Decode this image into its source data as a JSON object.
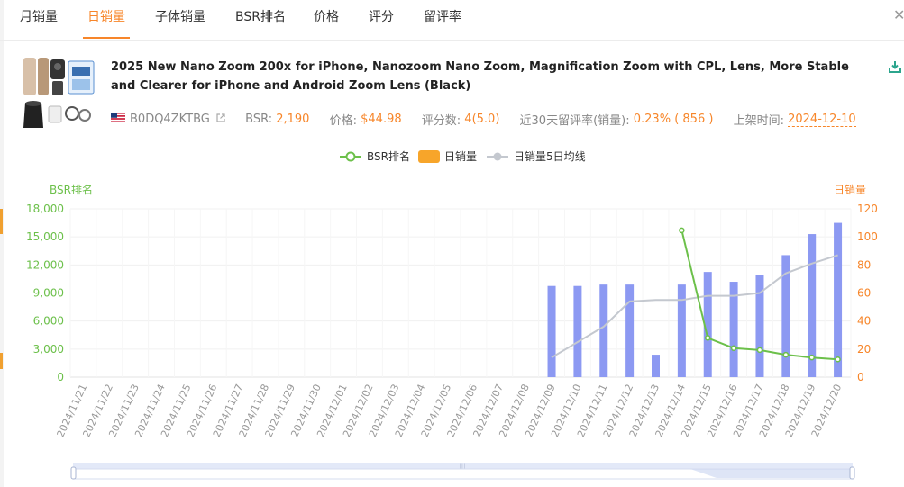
{
  "tabs": [
    {
      "label": "月销量",
      "active": false
    },
    {
      "label": "日销量",
      "active": true
    },
    {
      "label": "子体销量",
      "active": false
    },
    {
      "label": "BSR排名",
      "active": false
    },
    {
      "label": "价格",
      "active": false
    },
    {
      "label": "评分",
      "active": false
    },
    {
      "label": "留评率",
      "active": false
    }
  ],
  "close_icon": "close-icon",
  "product": {
    "title": "2025 New Nano Zoom 200x for iPhone, Nanozoom Nano Zoom, Magnification Zoom with CPL, Lens, More Stable and Clearer for iPhone and Android Zoom Lens (Black)",
    "asin": "B0DQ4ZKTBG",
    "bsr_label": "BSR:",
    "bsr_value": "2,190",
    "price_label": "价格:",
    "price_value": "$44.98",
    "rating_label": "评分数:",
    "rating_value": "4(5.0)",
    "review_rate_label": "近30天留评率(销量):",
    "review_rate_value": "0.23%",
    "review_rate_count": "( 856 )",
    "listed_label": "上架时间:",
    "listed_value": "2024-12-10"
  },
  "colors": {
    "accent": "#f7862a",
    "bsr_line": "#6cc04a",
    "bars": "#8c99f2",
    "ma_line": "#c4c8cf"
  },
  "chart_data": {
    "type": "bar",
    "legend": [
      "BSR排名",
      "日销量",
      "日销量5日均线"
    ],
    "legend_position": "top-center",
    "ylabel_left": "BSR排名",
    "ylabel_right": "日销量",
    "yticks_left": [
      "0",
      "3,000",
      "6,000",
      "9,000",
      "12,000",
      "15,000",
      "18,000"
    ],
    "yticks_right": [
      "0",
      "20",
      "40",
      "60",
      "80",
      "100",
      "120"
    ],
    "ylim_left": [
      0,
      18000
    ],
    "ylim_right": [
      0,
      120
    ],
    "grid": true,
    "categories": [
      "2024/11/21",
      "2024/11/22",
      "2024/11/23",
      "2024/11/24",
      "2024/11/25",
      "2024/11/26",
      "2024/11/27",
      "2024/11/28",
      "2024/11/29",
      "2024/11/30",
      "2024/12/01",
      "2024/12/02",
      "2024/12/03",
      "2024/12/04",
      "2024/12/05",
      "2024/12/06",
      "2024/12/07",
      "2024/12/08",
      "2024/12/09",
      "2024/12/10",
      "2024/12/11",
      "2024/12/12",
      "2024/12/13",
      "2024/12/14",
      "2024/12/15",
      "2024/12/16",
      "2024/12/17",
      "2024/12/18",
      "2024/12/19",
      "2024/12/20"
    ],
    "series": [
      {
        "name": "日销量",
        "type": "bar",
        "axis": "right",
        "values": [
          null,
          null,
          null,
          null,
          null,
          null,
          null,
          null,
          null,
          null,
          null,
          null,
          null,
          null,
          null,
          null,
          null,
          null,
          65,
          65,
          66,
          66,
          16,
          66,
          75,
          68,
          73,
          87,
          102,
          110
        ]
      },
      {
        "name": "日销量5日均线",
        "type": "line",
        "axis": "right",
        "values": [
          null,
          null,
          null,
          null,
          null,
          null,
          null,
          null,
          null,
          null,
          null,
          null,
          null,
          null,
          null,
          null,
          null,
          null,
          14,
          25,
          36,
          54,
          55,
          55,
          58,
          58,
          60,
          74,
          81,
          87
        ]
      },
      {
        "name": "BSR排名",
        "type": "line",
        "axis": "left",
        "values": [
          null,
          null,
          null,
          null,
          null,
          null,
          null,
          null,
          null,
          null,
          null,
          null,
          null,
          null,
          null,
          null,
          null,
          null,
          null,
          null,
          null,
          null,
          null,
          15700,
          4200,
          3100,
          2900,
          2400,
          2100,
          1900
        ]
      }
    ]
  }
}
